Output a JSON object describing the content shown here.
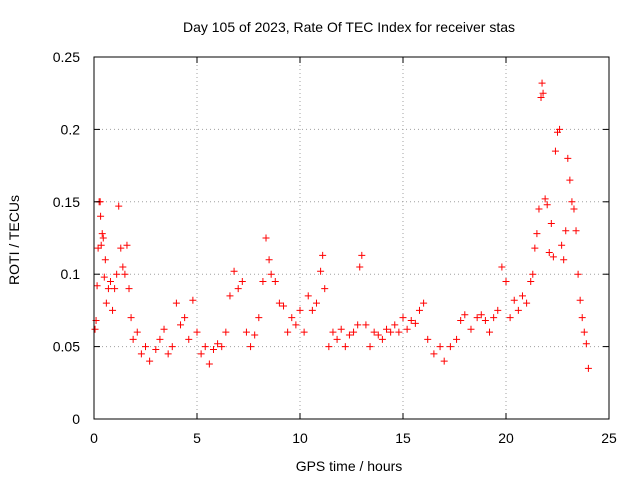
{
  "chart_data": {
    "type": "scatter",
    "title": "Day 105 of 2023, Rate Of TEC Index for receiver stas",
    "xlabel": "GPS time / hours",
    "ylabel": "ROTI / TECUs",
    "xlim": [
      0,
      25
    ],
    "ylim": [
      0,
      0.25
    ],
    "xticks": [
      0,
      5,
      10,
      15,
      20,
      25
    ],
    "xtick_labels": [
      "0",
      "5",
      "10",
      "15",
      "20",
      "25"
    ],
    "yticks": [
      0,
      0.05,
      0.1,
      0.15,
      0.2,
      0.25
    ],
    "ytick_labels": [
      "0",
      "0.05",
      "0.1",
      "0.15",
      "0.2",
      "0.25"
    ],
    "grid": true,
    "marker": "+",
    "color": "#ff0000",
    "series": [
      {
        "name": "ROTI",
        "points": [
          [
            0.05,
            0.062
          ],
          [
            0.1,
            0.068
          ],
          [
            0.15,
            0.092
          ],
          [
            0.2,
            0.118
          ],
          [
            0.25,
            0.15
          ],
          [
            0.3,
            0.15
          ],
          [
            0.32,
            0.14
          ],
          [
            0.35,
            0.12
          ],
          [
            0.4,
            0.128
          ],
          [
            0.45,
            0.125
          ],
          [
            0.5,
            0.098
          ],
          [
            0.55,
            0.11
          ],
          [
            0.6,
            0.08
          ],
          [
            0.7,
            0.09
          ],
          [
            0.8,
            0.095
          ],
          [
            0.9,
            0.075
          ],
          [
            1.0,
            0.09
          ],
          [
            1.1,
            0.1
          ],
          [
            1.2,
            0.147
          ],
          [
            1.3,
            0.118
          ],
          [
            1.4,
            0.105
          ],
          [
            1.5,
            0.1
          ],
          [
            1.6,
            0.12
          ],
          [
            1.7,
            0.09
          ],
          [
            1.8,
            0.07
          ],
          [
            1.9,
            0.055
          ],
          [
            2.1,
            0.06
          ],
          [
            2.3,
            0.045
          ],
          [
            2.5,
            0.05
          ],
          [
            2.7,
            0.04
          ],
          [
            3.0,
            0.048
          ],
          [
            3.2,
            0.055
          ],
          [
            3.4,
            0.062
          ],
          [
            3.6,
            0.045
          ],
          [
            3.8,
            0.05
          ],
          [
            4.0,
            0.08
          ],
          [
            4.2,
            0.065
          ],
          [
            4.4,
            0.07
          ],
          [
            4.6,
            0.055
          ],
          [
            4.8,
            0.082
          ],
          [
            5.0,
            0.06
          ],
          [
            5.2,
            0.045
          ],
          [
            5.4,
            0.05
          ],
          [
            5.6,
            0.038
          ],
          [
            5.8,
            0.048
          ],
          [
            6.0,
            0.052
          ],
          [
            6.2,
            0.05
          ],
          [
            6.4,
            0.06
          ],
          [
            6.6,
            0.085
          ],
          [
            6.8,
            0.102
          ],
          [
            7.0,
            0.09
          ],
          [
            7.2,
            0.095
          ],
          [
            7.4,
            0.06
          ],
          [
            7.6,
            0.05
          ],
          [
            7.8,
            0.058
          ],
          [
            8.0,
            0.07
          ],
          [
            8.2,
            0.095
          ],
          [
            8.35,
            0.125
          ],
          [
            8.5,
            0.11
          ],
          [
            8.6,
            0.1
          ],
          [
            8.8,
            0.095
          ],
          [
            9.0,
            0.08
          ],
          [
            9.2,
            0.078
          ],
          [
            9.4,
            0.06
          ],
          [
            9.6,
            0.07
          ],
          [
            9.8,
            0.065
          ],
          [
            10.0,
            0.075
          ],
          [
            10.2,
            0.06
          ],
          [
            10.4,
            0.085
          ],
          [
            10.6,
            0.075
          ],
          [
            10.8,
            0.08
          ],
          [
            11.0,
            0.102
          ],
          [
            11.1,
            0.113
          ],
          [
            11.2,
            0.09
          ],
          [
            11.4,
            0.05
          ],
          [
            11.6,
            0.06
          ],
          [
            11.8,
            0.055
          ],
          [
            12.0,
            0.062
          ],
          [
            12.2,
            0.05
          ],
          [
            12.4,
            0.058
          ],
          [
            12.6,
            0.06
          ],
          [
            12.8,
            0.065
          ],
          [
            12.9,
            0.105
          ],
          [
            13.0,
            0.113
          ],
          [
            13.2,
            0.065
          ],
          [
            13.4,
            0.05
          ],
          [
            13.6,
            0.06
          ],
          [
            13.8,
            0.058
          ],
          [
            14.0,
            0.055
          ],
          [
            14.2,
            0.062
          ],
          [
            14.4,
            0.06
          ],
          [
            14.6,
            0.065
          ],
          [
            14.8,
            0.06
          ],
          [
            15.0,
            0.07
          ],
          [
            15.2,
            0.062
          ],
          [
            15.4,
            0.068
          ],
          [
            15.6,
            0.066
          ],
          [
            15.8,
            0.075
          ],
          [
            16.0,
            0.08
          ],
          [
            16.2,
            0.055
          ],
          [
            16.5,
            0.045
          ],
          [
            16.8,
            0.05
          ],
          [
            17.0,
            0.04
          ],
          [
            17.3,
            0.05
          ],
          [
            17.6,
            0.055
          ],
          [
            17.8,
            0.068
          ],
          [
            18.0,
            0.072
          ],
          [
            18.3,
            0.062
          ],
          [
            18.6,
            0.07
          ],
          [
            18.8,
            0.072
          ],
          [
            19.0,
            0.068
          ],
          [
            19.2,
            0.06
          ],
          [
            19.4,
            0.07
          ],
          [
            19.6,
            0.075
          ],
          [
            19.8,
            0.105
          ],
          [
            20.0,
            0.095
          ],
          [
            20.2,
            0.07
          ],
          [
            20.4,
            0.082
          ],
          [
            20.6,
            0.075
          ],
          [
            20.8,
            0.085
          ],
          [
            21.0,
            0.08
          ],
          [
            21.2,
            0.095
          ],
          [
            21.3,
            0.1
          ],
          [
            21.4,
            0.118
          ],
          [
            21.5,
            0.128
          ],
          [
            21.6,
            0.145
          ],
          [
            21.7,
            0.222
          ],
          [
            21.75,
            0.232
          ],
          [
            21.8,
            0.225
          ],
          [
            21.9,
            0.152
          ],
          [
            22.0,
            0.148
          ],
          [
            22.1,
            0.115
          ],
          [
            22.2,
            0.135
          ],
          [
            22.3,
            0.112
          ],
          [
            22.4,
            0.185
          ],
          [
            22.5,
            0.198
          ],
          [
            22.6,
            0.2
          ],
          [
            22.7,
            0.12
          ],
          [
            22.8,
            0.11
          ],
          [
            22.9,
            0.13
          ],
          [
            23.0,
            0.18
          ],
          [
            23.1,
            0.165
          ],
          [
            23.2,
            0.15
          ],
          [
            23.3,
            0.145
          ],
          [
            23.4,
            0.13
          ],
          [
            23.5,
            0.1
          ],
          [
            23.6,
            0.082
          ],
          [
            23.7,
            0.07
          ],
          [
            23.8,
            0.06
          ],
          [
            23.9,
            0.052
          ],
          [
            24.0,
            0.035
          ]
        ]
      }
    ]
  }
}
